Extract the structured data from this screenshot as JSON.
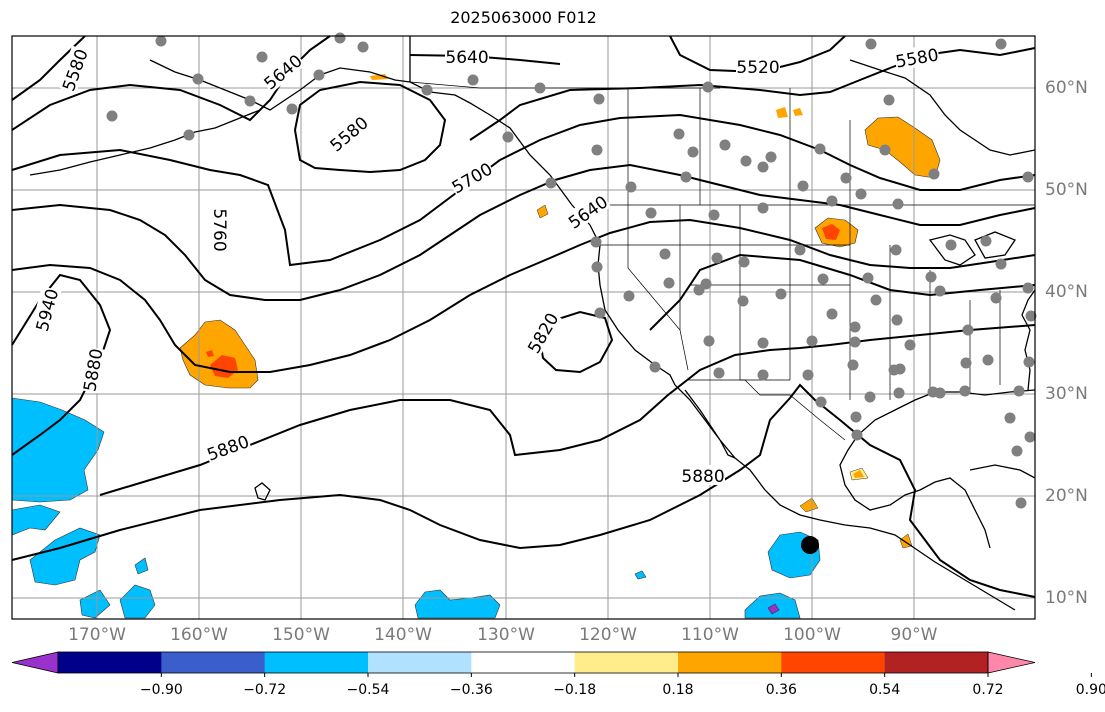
{
  "title": "2025063000 F012",
  "latitude_labels": [
    "60°N",
    "50°N",
    "40°N",
    "30°N",
    "20°N",
    "10°N"
  ],
  "longitude_labels": [
    "170°W",
    "160°W",
    "150°W",
    "140°W",
    "130°W",
    "120°W",
    "110°W",
    "100°W",
    "90°W"
  ],
  "contour_labels": [
    "5580",
    "5640",
    "5640",
    "5520",
    "5580",
    "5580",
    "5700",
    "5760",
    "5640",
    "5940",
    "5880",
    "5820",
    "5880",
    "5880"
  ],
  "colorbar": {
    "ticks": [
      "−0.90",
      "−0.72",
      "−0.54",
      "−0.36",
      "−0.18",
      "0.18",
      "0.36",
      "0.54",
      "0.72",
      "0.90"
    ],
    "colors": [
      "#9932cc",
      "#00008b",
      "#3a5fcd",
      "#00bfff",
      "#b0e2ff",
      "#ffffff",
      "#ffec8b",
      "#ffa500",
      "#ff4500",
      "#b22222",
      "#ff88aa"
    ]
  },
  "shading_colors": {
    "cyan": "#00bfff",
    "orange": "#ffa500",
    "red": "#ff4500",
    "yellow": "#ffec8b",
    "purple": "#9932cc"
  },
  "station_marker_color": "#808080"
}
